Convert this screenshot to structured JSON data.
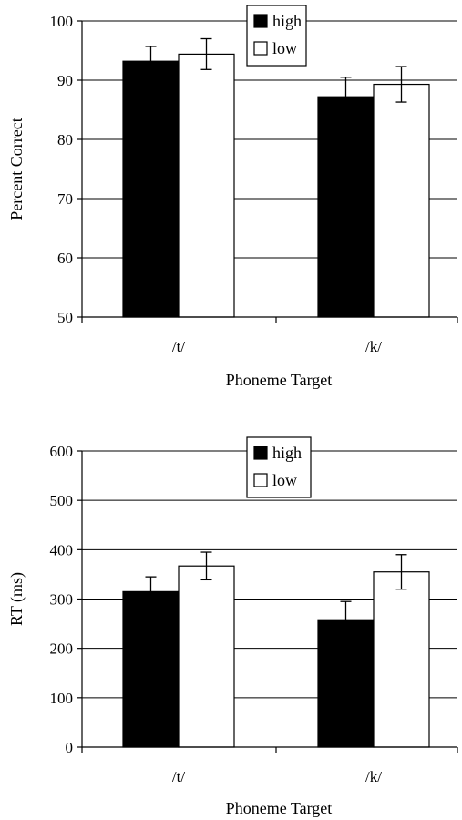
{
  "chart_data": [
    {
      "type": "bar",
      "categories": [
        "/t/",
        "/k/"
      ],
      "series": [
        {
          "name": "high",
          "values": [
            93.2,
            87.2
          ],
          "error": [
            2.5,
            3.3
          ],
          "color": "#000000"
        },
        {
          "name": "low",
          "values": [
            94.4,
            89.3
          ],
          "error": [
            2.6,
            3.0
          ],
          "color": "#ffffff"
        }
      ],
      "ylim": [
        50,
        100
      ],
      "yticks": [
        50,
        60,
        70,
        80,
        90,
        100
      ],
      "ylabel": "Percent Correct",
      "xlabel": "Phoneme Target",
      "legend": {
        "placement": "top-right",
        "labels": [
          "high",
          "low"
        ]
      },
      "grid": true
    },
    {
      "type": "bar",
      "categories": [
        "/t/",
        "/k/"
      ],
      "series": [
        {
          "name": "high",
          "values": [
            315,
            258
          ],
          "error": [
            30,
            37
          ],
          "color": "#000000"
        },
        {
          "name": "low",
          "values": [
            367,
            355
          ],
          "error": [
            28,
            35
          ],
          "color": "#ffffff"
        }
      ],
      "ylim": [
        0,
        600
      ],
      "yticks": [
        0,
        100,
        200,
        300,
        400,
        500,
        600
      ],
      "ylabel": "RT (ms)",
      "xlabel": "Phoneme Target",
      "legend": {
        "placement": "top-right",
        "labels": [
          "high",
          "low"
        ]
      },
      "grid": true
    }
  ]
}
